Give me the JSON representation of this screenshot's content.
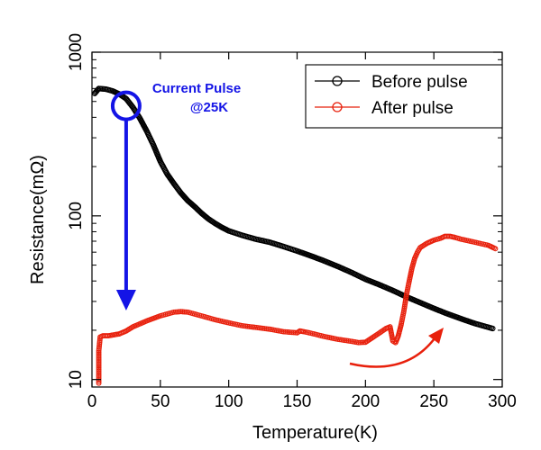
{
  "chart_data": {
    "type": "scatter",
    "title": "",
    "xlabel": "Temperature(K)",
    "ylabel": "Resistance(mΩ)",
    "xlim": [
      0,
      300
    ],
    "ylim": [
      9,
      1000
    ],
    "yscale": "log",
    "xticks": [
      0,
      50,
      100,
      150,
      200,
      250,
      300
    ],
    "xtick_labels": [
      "0",
      "50",
      "100",
      "150",
      "200",
      "250",
      "300"
    ],
    "yticks": [
      10,
      100,
      1000
    ],
    "ytick_labels": [
      "10",
      "100",
      "1000"
    ],
    "grid": false,
    "legend_position": "top-right",
    "series": [
      {
        "name": "Before pulse",
        "color": "#000000",
        "marker": "open-circle",
        "x": [
          2,
          5,
          10,
          15,
          20,
          25,
          30,
          35,
          40,
          45,
          50,
          55,
          60,
          65,
          70,
          75,
          80,
          85,
          90,
          95,
          100,
          110,
          120,
          130,
          140,
          150,
          160,
          170,
          180,
          190,
          200,
          210,
          220,
          230,
          240,
          250,
          260,
          270,
          280,
          293
        ],
        "y": [
          560,
          600,
          595,
          580,
          555,
          520,
          460,
          395,
          330,
          270,
          215,
          180,
          157,
          138,
          124,
          114,
          104,
          96,
          90,
          85,
          81,
          76,
          72,
          69,
          65,
          61,
          57,
          53,
          49,
          45,
          41,
          38,
          35,
          32,
          29.5,
          27.2,
          25.2,
          23.5,
          22,
          20.5
        ]
      },
      {
        "name": "After pulse",
        "color": "#e8200c",
        "marker": "open-circle",
        "x": [
          5,
          5,
          5,
          6,
          8,
          12,
          20,
          25,
          30,
          40,
          50,
          60,
          65,
          70,
          80,
          90,
          100,
          110,
          120,
          130,
          140,
          150,
          152,
          155,
          160,
          170,
          180,
          190,
          195,
          200,
          205,
          210,
          215,
          218,
          220,
          222,
          224,
          226,
          228,
          230,
          232,
          234,
          236,
          238,
          240,
          245,
          250,
          255,
          258,
          262,
          265,
          270,
          280,
          290,
          295
        ],
        "y": [
          9.5,
          11,
          15,
          18.2,
          18.5,
          18.5,
          19,
          19.8,
          21,
          22.8,
          24.5,
          25.8,
          26,
          25.8,
          24.5,
          23.2,
          22.2,
          21.3,
          20.8,
          20.3,
          19.6,
          19.3,
          19.8,
          19.6,
          19.2,
          18.3,
          17.6,
          17.1,
          16.8,
          16.9,
          18,
          19.2,
          20.5,
          21,
          17.2,
          16.8,
          18.5,
          21.5,
          26,
          33,
          40,
          48,
          55,
          60,
          64,
          68,
          71,
          73,
          75,
          75,
          74,
          72,
          69,
          66,
          63
        ]
      }
    ],
    "annotations": [
      {
        "text_line1": "Current Pulse",
        "text_line2": "@25K",
        "color": "#1414e6"
      }
    ]
  }
}
